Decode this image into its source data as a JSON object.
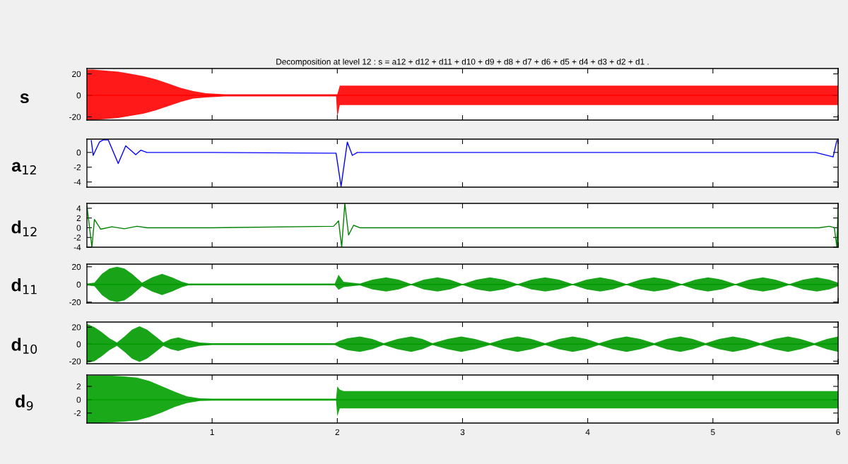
{
  "chart_data": [
    {
      "type": "line",
      "title": "Decomposition at level 12 : s = a12 + d12 + d11 + d10 + d9 + d8 + d7 + d6 + d5 + d4 + d3 + d2 + d1 .",
      "ylabel": "s",
      "xlim": [
        0,
        6
      ],
      "xticks": [
        1,
        2,
        3,
        4,
        5,
        6
      ],
      "ylim": [
        -23,
        25
      ],
      "yticks": [
        -20,
        0,
        20
      ],
      "tick_labels": "y",
      "x": [
        0,
        0.05,
        0.15,
        0.25,
        0.35,
        0.45,
        0.55,
        0.65,
        0.75,
        0.85,
        0.95,
        1.1,
        1.5,
        1.99,
        2.0,
        2.02,
        2.1,
        3,
        4,
        5,
        6
      ],
      "series": [
        {
          "color": "#ff0000",
          "values": [
            0,
            0,
            0,
            0,
            0,
            0,
            0,
            0,
            0,
            0,
            0,
            0,
            0,
            0,
            0,
            0,
            0,
            0,
            0,
            0,
            0
          ],
          "upper": [
            24,
            24,
            23,
            22,
            20,
            18,
            15,
            11,
            7,
            4,
            2,
            1,
            1,
            1,
            1,
            9,
            9,
            9,
            9,
            9,
            9
          ],
          "lower": [
            -23,
            -23,
            -22,
            -21,
            -19,
            -17,
            -14,
            -10,
            -6,
            -3,
            -2,
            -1,
            -1,
            -1,
            -20,
            -9,
            -9,
            -9,
            -9,
            -9,
            -9
          ]
        }
      ]
    },
    {
      "type": "line",
      "ylabel": "a$_{12}$",
      "xlim": [
        0,
        6
      ],
      "xticks": [
        1,
        2,
        3,
        4,
        5,
        6
      ],
      "ylim": [
        -4.7,
        1.8
      ],
      "yticks": [
        -4,
        -2,
        0
      ],
      "tick_labels": "y",
      "x": [
        0.035,
        0.05,
        0.1,
        0.13,
        0.17,
        0.2,
        0.25,
        0.31,
        0.35,
        0.39,
        0.43,
        0.48,
        1.0,
        1.94,
        1.99,
        2.03,
        2.08,
        2.12,
        2.16,
        2.5,
        5.82,
        5.96,
        5.99
      ],
      "series": [
        {
          "color": "#0000ff",
          "values": [
            1.6,
            -0.4,
            1.4,
            1.7,
            1.7,
            0.5,
            -1.5,
            0.9,
            0.3,
            -0.3,
            0.3,
            0,
            0,
            -0.1,
            -0.1,
            -4.6,
            1.4,
            -0.4,
            0,
            0,
            0,
            -0.6,
            1.6
          ]
        }
      ]
    },
    {
      "type": "line",
      "ylabel": "d$_{12}$",
      "xlim": [
        0,
        6
      ],
      "xticks": [
        1,
        2,
        3,
        4,
        5,
        6
      ],
      "ylim": [
        -4,
        5
      ],
      "yticks": [
        -4,
        -2,
        0,
        2,
        4
      ],
      "tick_labels": "y",
      "x": [
        0,
        0.04,
        0.06,
        0.11,
        0.2,
        0.3,
        0.4,
        0.48,
        1.0,
        1.97,
        2.01,
        2.035,
        2.06,
        2.09,
        2.13,
        2.18,
        3,
        5.85,
        5.93,
        5.97,
        5.99,
        6.0
      ],
      "series": [
        {
          "color": "#008000",
          "values": [
            4.5,
            -4,
            1.7,
            -0.3,
            0.2,
            -0.2,
            0.3,
            0,
            0,
            0.3,
            1.4,
            -4,
            5,
            -1.5,
            0.5,
            0,
            0,
            0,
            0.3,
            0,
            -4,
            4
          ]
        }
      ]
    },
    {
      "type": "line",
      "ylabel": "d$_{11}$",
      "xlim": [
        0,
        6
      ],
      "xticks": [
        1,
        2,
        3,
        4,
        5,
        6
      ],
      "ylim": [
        -21,
        23
      ],
      "yticks": [
        -20,
        0,
        20
      ],
      "tick_labels": "y",
      "x": [
        0,
        0.06,
        0.12,
        0.18,
        0.24,
        0.3,
        0.36,
        0.44,
        0.52,
        0.6,
        0.68,
        0.76,
        0.81,
        1.0,
        1.5,
        1.98,
        2.01,
        2.05,
        2.18,
        2.28,
        2.39,
        2.49,
        2.59,
        2.69,
        2.8,
        2.9,
        3.0,
        3.11,
        3.22,
        3.33,
        3.44,
        3.55,
        3.66,
        3.77,
        3.88,
        3.99,
        4.1,
        4.2,
        4.31,
        4.42,
        4.53,
        4.64,
        4.75,
        4.86,
        4.96,
        5.07,
        5.18,
        5.29,
        5.4,
        5.5,
        5.61,
        5.72,
        5.83,
        5.93,
        6.0
      ],
      "series": [
        {
          "color": "#009900",
          "values": [
            0,
            0,
            0,
            0,
            0,
            0,
            0,
            0,
            0,
            0,
            0,
            0,
            0,
            0,
            0,
            0,
            0,
            0,
            0,
            0,
            0,
            0,
            0,
            0,
            0,
            0,
            0,
            0,
            0,
            0,
            0,
            0,
            0,
            0,
            0,
            0,
            0,
            0,
            0,
            0,
            0,
            0,
            0,
            0,
            0,
            0,
            0,
            0,
            0,
            0,
            0,
            0,
            0,
            0,
            0
          ],
          "upper": [
            1,
            2,
            12,
            18,
            20,
            18,
            12,
            2,
            8,
            12,
            8,
            3,
            1,
            1,
            1,
            1,
            11,
            3,
            1,
            5.5,
            8,
            5.5,
            0.5,
            5.5,
            8,
            5.5,
            0.5,
            5.5,
            8,
            5.5,
            0.5,
            5.5,
            8,
            5.5,
            0.5,
            5.5,
            8,
            5.5,
            0.5,
            5.5,
            8,
            5.5,
            0.5,
            5.5,
            8,
            5.5,
            0.5,
            5.5,
            8,
            5.5,
            0.5,
            5.5,
            8,
            5.5,
            2
          ],
          "lower": [
            -1,
            -2,
            -12,
            -18,
            -20,
            -18,
            -12,
            -2,
            -8,
            -12,
            -8,
            -3,
            -1,
            -1,
            -1,
            -1,
            -6,
            -3,
            -1,
            -5.5,
            -8,
            -5.5,
            -0.5,
            -5.5,
            -8,
            -5.5,
            -0.5,
            -5.5,
            -8,
            -5.5,
            -0.5,
            -5.5,
            -8,
            -5.5,
            -0.5,
            -5.5,
            -8,
            -5.5,
            -0.5,
            -5.5,
            -8,
            -5.5,
            -0.5,
            -5.5,
            -8,
            -5.5,
            -0.5,
            -5.5,
            -8,
            -5.5,
            -0.5,
            -5.5,
            -8,
            -5.5,
            -2
          ]
        }
      ]
    },
    {
      "type": "line",
      "ylabel": "d$_{10}$",
      "xlim": [
        0,
        6
      ],
      "xticks": [
        1,
        2,
        3,
        4,
        5,
        6
      ],
      "ylim": [
        -23,
        26
      ],
      "yticks": [
        -20,
        0,
        20
      ],
      "tick_labels": "y",
      "x": [
        0,
        0.06,
        0.12,
        0.18,
        0.24,
        0.3,
        0.36,
        0.42,
        0.48,
        0.55,
        0.61,
        0.67,
        0.73,
        0.8,
        0.9,
        1.0,
        1.5,
        1.98,
        2.02,
        2.08,
        2.18,
        2.28,
        2.37,
        2.48,
        2.59,
        2.68,
        2.76,
        2.88,
        2.99,
        3.1,
        3.22,
        3.33,
        3.44,
        3.55,
        3.66,
        3.77,
        3.88,
        3.99,
        4.09,
        4.2,
        4.31,
        4.42,
        4.53,
        4.63,
        4.74,
        4.84,
        4.94,
        5.05,
        5.16,
        5.27,
        5.38,
        5.49,
        5.6,
        5.7,
        5.81,
        5.91,
        6.0
      ],
      "series": [
        {
          "color": "#009900",
          "values": [
            0,
            0,
            0,
            0,
            0,
            0,
            0,
            0,
            0,
            0,
            0,
            0,
            0,
            0,
            0,
            0,
            0,
            0,
            0,
            0,
            0,
            0,
            0,
            0,
            0,
            0,
            0,
            0,
            0,
            0,
            0,
            0,
            0,
            0,
            0,
            0,
            0,
            0,
            0,
            0,
            0,
            0,
            0,
            0,
            0,
            0,
            0,
            0,
            0,
            0,
            0,
            0,
            0,
            0,
            0,
            0,
            0
          ],
          "upper": [
            24,
            20,
            14,
            7,
            2,
            9,
            17,
            21,
            17,
            9,
            2,
            6,
            8,
            5,
            2,
            1,
            1,
            1,
            4,
            7,
            9,
            6,
            1,
            6,
            9,
            6,
            1,
            6,
            9,
            6,
            1,
            6,
            9,
            6,
            1,
            6,
            9,
            6,
            1,
            6,
            9,
            6,
            1,
            6,
            9,
            6,
            1,
            6,
            9,
            6,
            1,
            6,
            9,
            6,
            1,
            6,
            9
          ],
          "lower": [
            -22,
            -20,
            -14,
            -7,
            -2,
            -9,
            -17,
            -21,
            -17,
            -9,
            -2,
            -6,
            -8,
            -5,
            -2,
            -1,
            -1,
            -1,
            -4,
            -7,
            -9,
            -6,
            -1,
            -6,
            -9,
            -6,
            -1,
            -6,
            -9,
            -6,
            -1,
            -6,
            -9,
            -6,
            -1,
            -6,
            -9,
            -6,
            -1,
            -6,
            -9,
            -6,
            -1,
            -6,
            -9,
            -6,
            -1,
            -6,
            -9,
            -6,
            -1,
            -6,
            -9,
            -6,
            -1,
            -6,
            -9
          ]
        }
      ]
    },
    {
      "type": "line",
      "ylabel": "d$_{9}$",
      "xlim": [
        0,
        6
      ],
      "xticks": [
        1,
        2,
        3,
        4,
        5,
        6
      ],
      "ylim": [
        -3.5,
        3.7
      ],
      "yticks": [
        -2,
        0,
        2
      ],
      "x": [
        0,
        0.1,
        0.2,
        0.3,
        0.4,
        0.5,
        0.6,
        0.7,
        0.8,
        0.9,
        1.0,
        1.5,
        1.99,
        2.0,
        2.02,
        2.05,
        3,
        4,
        5,
        6
      ],
      "series": [
        {
          "color": "#00a000",
          "values": [
            0,
            0,
            0,
            0,
            0,
            0,
            0,
            0,
            0,
            0,
            0,
            0,
            0,
            0,
            0,
            0,
            0,
            0,
            0,
            0
          ],
          "upper": [
            3.6,
            3.6,
            3.6,
            3.5,
            3.3,
            2.8,
            2,
            1.2,
            0.5,
            0.2,
            0.15,
            0.15,
            0.15,
            2,
            1.5,
            1.3,
            1.3,
            1.3,
            1.3,
            1.3
          ],
          "lower": [
            -3.5,
            -3.5,
            -3.4,
            -3.3,
            -3.1,
            -2.6,
            -1.9,
            -1.1,
            -0.5,
            -0.2,
            -0.15,
            -0.15,
            -0.15,
            -2.5,
            -1.3,
            -1.3,
            -1.3,
            -1.3,
            -1.3,
            -1.3
          ]
        }
      ]
    }
  ]
}
